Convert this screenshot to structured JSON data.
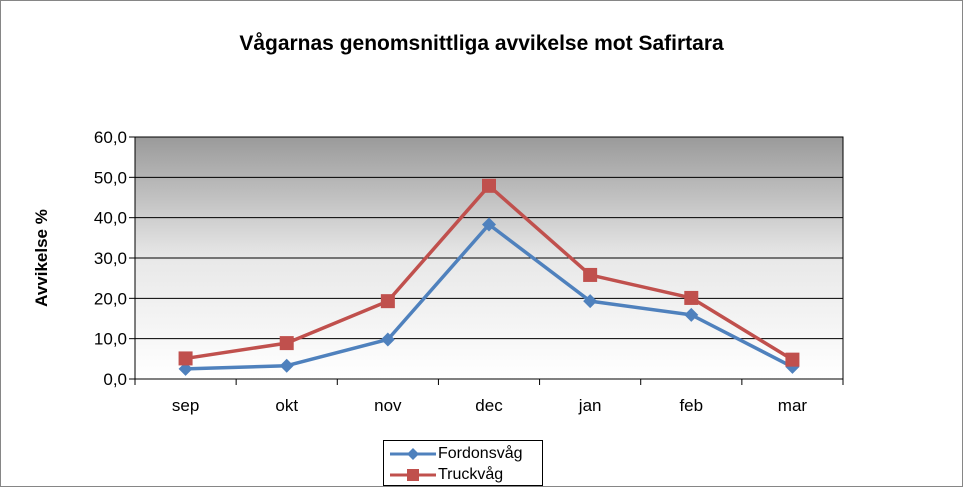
{
  "chart_data": {
    "type": "line",
    "title": "Vågarnas genomsnittliga avvikelse mot Safirtara",
    "xlabel": "",
    "ylabel": "Avvikelse %",
    "categories": [
      "sep",
      "okt",
      "nov",
      "dec",
      "jan",
      "feb",
      "mar"
    ],
    "ylim": [
      0,
      60
    ],
    "yticks": [
      "0,0",
      "10,0",
      "20,0",
      "30,0",
      "40,0",
      "50,0",
      "60,0"
    ],
    "grid": true,
    "legend_position": "bottom",
    "series": [
      {
        "name": "Fordonsvåg",
        "color": "#4F81BD",
        "marker": "diamond",
        "values": [
          2.5,
          3.3,
          9.8,
          38.3,
          19.3,
          15.9,
          3.0
        ]
      },
      {
        "name": "Truckvåg",
        "color": "#C0504D",
        "marker": "square",
        "values": [
          5.1,
          8.9,
          19.3,
          47.9,
          25.8,
          20.1,
          4.8
        ]
      }
    ]
  }
}
